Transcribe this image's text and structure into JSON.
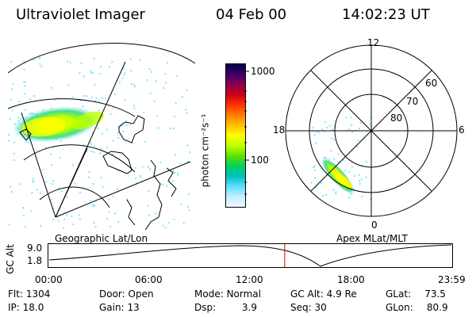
{
  "header": {
    "instrument": "Ultraviolet Imager",
    "date": "04 Feb 00",
    "time": "14:02:23 UT"
  },
  "panels": {
    "geo_label": "Geographic Lat/Lon",
    "mag_label": "Apex  MLat/MLT"
  },
  "colorbar": {
    "unit_label": "photon cm⁻²s⁻¹",
    "ticks": [
      "1000",
      "100"
    ],
    "colors": [
      "#000044",
      "#3a0066",
      "#8a0050",
      "#c80018",
      "#ff3000",
      "#ff8000",
      "#ffc000",
      "#ffff00",
      "#c0ff00",
      "#60e000",
      "#00d060",
      "#00c0c0",
      "#60e0ff",
      "#c8f0ff",
      "#f4f8ff"
    ]
  },
  "polar": {
    "mlt_labels": {
      "top": "12",
      "left": "18",
      "right": "6",
      "bottom": "0"
    },
    "lat_labels": [
      "60",
      "70",
      "80"
    ]
  },
  "altplot": {
    "ylabel": "GC Alt",
    "yticks": [
      "9.0",
      "1.8"
    ],
    "xticks": [
      "00:00",
      "06:00",
      "12:00",
      "18:00",
      "23:59"
    ],
    "marker_time_hours": 14.04
  },
  "footer": {
    "row1": [
      {
        "label": "Flt:",
        "value": "1304"
      },
      {
        "label": "Door:",
        "value": "Open"
      },
      {
        "label": "Mode:",
        "value": "Normal"
      },
      {
        "label": "GC Alt:",
        "value": "4.9 Re"
      },
      {
        "label": "GLat:",
        "value": "73.5"
      }
    ],
    "row2": [
      {
        "label": "IP:",
        "value": "18.0"
      },
      {
        "label": "Gain:",
        "value": "13"
      },
      {
        "label": "Dsp:",
        "value": "3.9"
      },
      {
        "label": "Seq:",
        "value": "30"
      },
      {
        "label": "GLon:",
        "value": "80.9"
      }
    ]
  }
}
